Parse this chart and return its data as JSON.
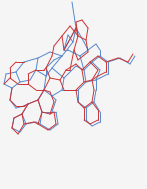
{
  "background": "#f5f5f5",
  "blue_color": "#5588cc",
  "red_color": "#cc3333",
  "linewidth": 0.7,
  "figsize": [
    1.47,
    1.89
  ],
  "dpi": 100,
  "xlim": [
    0,
    147
  ],
  "ylim": [
    189,
    0
  ],
  "blue_lines": [
    [
      [
        72,
        2
      ],
      [
        76,
        28
      ]
    ],
    [
      [
        76,
        28
      ],
      [
        73,
        42
      ]
    ],
    [
      [
        73,
        42
      ],
      [
        68,
        35
      ]
    ],
    [
      [
        68,
        35
      ],
      [
        64,
        50
      ]
    ],
    [
      [
        64,
        50
      ],
      [
        76,
        28
      ]
    ],
    [
      [
        73,
        42
      ],
      [
        62,
        56
      ]
    ],
    [
      [
        62,
        56
      ],
      [
        50,
        52
      ]
    ],
    [
      [
        50,
        52
      ],
      [
        38,
        58
      ]
    ],
    [
      [
        38,
        58
      ],
      [
        36,
        70
      ]
    ],
    [
      [
        36,
        70
      ],
      [
        46,
        76
      ]
    ],
    [
      [
        46,
        76
      ],
      [
        52,
        68
      ]
    ],
    [
      [
        52,
        68
      ],
      [
        62,
        56
      ]
    ],
    [
      [
        38,
        58
      ],
      [
        24,
        62
      ]
    ],
    [
      [
        24,
        62
      ],
      [
        16,
        72
      ]
    ],
    [
      [
        16,
        72
      ],
      [
        20,
        82
      ]
    ],
    [
      [
        20,
        82
      ],
      [
        30,
        80
      ]
    ],
    [
      [
        30,
        80
      ],
      [
        36,
        70
      ]
    ],
    [
      [
        16,
        72
      ],
      [
        6,
        74
      ]
    ],
    [
      [
        6,
        74
      ],
      [
        4,
        84
      ]
    ],
    [
      [
        4,
        84
      ],
      [
        12,
        88
      ]
    ],
    [
      [
        12,
        88
      ],
      [
        20,
        82
      ]
    ],
    [
      [
        46,
        76
      ],
      [
        44,
        90
      ]
    ],
    [
      [
        44,
        90
      ],
      [
        52,
        96
      ]
    ],
    [
      [
        52,
        96
      ],
      [
        62,
        90
      ]
    ],
    [
      [
        62,
        90
      ],
      [
        64,
        78
      ]
    ],
    [
      [
        64,
        78
      ],
      [
        52,
        68
      ]
    ],
    [
      [
        62,
        90
      ],
      [
        78,
        90
      ]
    ],
    [
      [
        78,
        90
      ],
      [
        86,
        82
      ]
    ],
    [
      [
        86,
        82
      ],
      [
        84,
        70
      ]
    ],
    [
      [
        84,
        70
      ],
      [
        76,
        66
      ]
    ],
    [
      [
        76,
        66
      ],
      [
        64,
        78
      ]
    ],
    [
      [
        86,
        82
      ],
      [
        96,
        80
      ]
    ],
    [
      [
        96,
        80
      ],
      [
        100,
        70
      ]
    ],
    [
      [
        100,
        70
      ],
      [
        92,
        62
      ]
    ],
    [
      [
        92,
        62
      ],
      [
        84,
        70
      ]
    ],
    [
      [
        92,
        62
      ],
      [
        100,
        56
      ]
    ],
    [
      [
        100,
        56
      ],
      [
        108,
        62
      ]
    ],
    [
      [
        108,
        62
      ],
      [
        108,
        74
      ]
    ],
    [
      [
        108,
        74
      ],
      [
        100,
        78
      ]
    ],
    [
      [
        100,
        78
      ],
      [
        96,
        80
      ]
    ],
    [
      [
        108,
        62
      ],
      [
        120,
        58
      ]
    ],
    [
      [
        120,
        58
      ],
      [
        130,
        64
      ]
    ],
    [
      [
        130,
        64
      ],
      [
        135,
        56
      ]
    ],
    [
      [
        84,
        70
      ],
      [
        80,
        56
      ]
    ],
    [
      [
        80,
        56
      ],
      [
        68,
        50
      ]
    ],
    [
      [
        68,
        50
      ],
      [
        64,
        50
      ]
    ],
    [
      [
        80,
        56
      ],
      [
        88,
        50
      ]
    ],
    [
      [
        88,
        50
      ],
      [
        84,
        42
      ]
    ],
    [
      [
        84,
        42
      ],
      [
        76,
        28
      ]
    ],
    [
      [
        88,
        50
      ],
      [
        96,
        44
      ]
    ],
    [
      [
        96,
        44
      ],
      [
        100,
        50
      ]
    ],
    [
      [
        100,
        50
      ],
      [
        100,
        56
      ]
    ],
    [
      [
        44,
        90
      ],
      [
        38,
        100
      ]
    ],
    [
      [
        38,
        100
      ],
      [
        42,
        112
      ]
    ],
    [
      [
        42,
        112
      ],
      [
        52,
        112
      ]
    ],
    [
      [
        52,
        112
      ],
      [
        56,
        100
      ]
    ],
    [
      [
        56,
        100
      ],
      [
        52,
        96
      ]
    ],
    [
      [
        42,
        112
      ],
      [
        40,
        124
      ]
    ],
    [
      [
        40,
        124
      ],
      [
        50,
        130
      ]
    ],
    [
      [
        50,
        130
      ],
      [
        58,
        124
      ]
    ],
    [
      [
        58,
        124
      ],
      [
        56,
        112
      ]
    ],
    [
      [
        56,
        112
      ],
      [
        52,
        112
      ]
    ],
    [
      [
        38,
        100
      ],
      [
        28,
        104
      ]
    ],
    [
      [
        28,
        104
      ],
      [
        22,
        114
      ]
    ],
    [
      [
        22,
        114
      ],
      [
        26,
        124
      ]
    ],
    [
      [
        26,
        124
      ],
      [
        36,
        122
      ]
    ],
    [
      [
        36,
        122
      ],
      [
        40,
        124
      ]
    ],
    [
      [
        22,
        114
      ],
      [
        14,
        118
      ]
    ],
    [
      [
        14,
        118
      ],
      [
        12,
        128
      ]
    ],
    [
      [
        12,
        128
      ],
      [
        20,
        132
      ]
    ],
    [
      [
        20,
        132
      ],
      [
        26,
        124
      ]
    ],
    [
      [
        12,
        88
      ],
      [
        10,
        100
      ]
    ],
    [
      [
        10,
        100
      ],
      [
        16,
        108
      ]
    ],
    [
      [
        16,
        108
      ],
      [
        24,
        106
      ]
    ],
    [
      [
        24,
        106
      ],
      [
        28,
        104
      ]
    ],
    [
      [
        78,
        90
      ],
      [
        78,
        102
      ]
    ],
    [
      [
        78,
        102
      ],
      [
        86,
        108
      ]
    ],
    [
      [
        86,
        108
      ],
      [
        94,
        102
      ]
    ],
    [
      [
        94,
        102
      ],
      [
        96,
        90
      ]
    ],
    [
      [
        96,
        90
      ],
      [
        96,
        80
      ]
    ],
    [
      [
        86,
        108
      ],
      [
        86,
        120
      ]
    ],
    [
      [
        86,
        120
      ],
      [
        92,
        126
      ]
    ],
    [
      [
        92,
        126
      ],
      [
        100,
        122
      ]
    ],
    [
      [
        100,
        122
      ],
      [
        100,
        112
      ]
    ],
    [
      [
        100,
        112
      ],
      [
        94,
        102
      ]
    ],
    [
      [
        62,
        56
      ],
      [
        54,
        60
      ]
    ],
    [
      [
        54,
        60
      ],
      [
        46,
        68
      ]
    ],
    [
      [
        46,
        68
      ],
      [
        46,
        76
      ]
    ]
  ],
  "red_lines": [
    [
      [
        70,
        70
      ],
      [
        74,
        50
      ]
    ],
    [
      [
        74,
        50
      ],
      [
        78,
        60
      ]
    ],
    [
      [
        78,
        60
      ],
      [
        88,
        52
      ]
    ],
    [
      [
        88,
        52
      ],
      [
        86,
        40
      ]
    ],
    [
      [
        86,
        40
      ],
      [
        78,
        36
      ]
    ],
    [
      [
        78,
        36
      ],
      [
        74,
        50
      ]
    ],
    [
      [
        78,
        36
      ],
      [
        70,
        26
      ]
    ],
    [
      [
        70,
        26
      ],
      [
        62,
        36
      ]
    ],
    [
      [
        62,
        36
      ],
      [
        64,
        50
      ]
    ],
    [
      [
        62,
        36
      ],
      [
        54,
        46
      ]
    ],
    [
      [
        54,
        46
      ],
      [
        52,
        56
      ]
    ],
    [
      [
        52,
        56
      ],
      [
        46,
        68
      ]
    ],
    [
      [
        46,
        68
      ],
      [
        50,
        78
      ]
    ],
    [
      [
        50,
        78
      ],
      [
        60,
        80
      ]
    ],
    [
      [
        60,
        80
      ],
      [
        66,
        70
      ]
    ],
    [
      [
        66,
        70
      ],
      [
        70,
        70
      ]
    ],
    [
      [
        50,
        78
      ],
      [
        44,
        90
      ]
    ],
    [
      [
        44,
        90
      ],
      [
        36,
        90
      ]
    ],
    [
      [
        36,
        90
      ],
      [
        28,
        84
      ]
    ],
    [
      [
        28,
        84
      ],
      [
        28,
        74
      ]
    ],
    [
      [
        28,
        74
      ],
      [
        36,
        70
      ]
    ],
    [
      [
        36,
        70
      ],
      [
        44,
        70
      ]
    ],
    [
      [
        44,
        70
      ],
      [
        46,
        68
      ]
    ],
    [
      [
        28,
        84
      ],
      [
        18,
        84
      ]
    ],
    [
      [
        18,
        84
      ],
      [
        10,
        78
      ]
    ],
    [
      [
        10,
        78
      ],
      [
        10,
        68
      ]
    ],
    [
      [
        10,
        68
      ],
      [
        16,
        62
      ]
    ],
    [
      [
        16,
        62
      ],
      [
        24,
        62
      ]
    ],
    [
      [
        10,
        78
      ],
      [
        4,
        84
      ]
    ],
    [
      [
        60,
        80
      ],
      [
        64,
        90
      ]
    ],
    [
      [
        64,
        90
      ],
      [
        76,
        90
      ]
    ],
    [
      [
        76,
        90
      ],
      [
        84,
        82
      ]
    ],
    [
      [
        84,
        82
      ],
      [
        82,
        70
      ]
    ],
    [
      [
        82,
        70
      ],
      [
        76,
        64
      ]
    ],
    [
      [
        76,
        64
      ],
      [
        66,
        70
      ]
    ],
    [
      [
        84,
        82
      ],
      [
        92,
        80
      ]
    ],
    [
      [
        92,
        80
      ],
      [
        98,
        70
      ]
    ],
    [
      [
        98,
        70
      ],
      [
        90,
        62
      ]
    ],
    [
      [
        90,
        62
      ],
      [
        82,
        70
      ]
    ],
    [
      [
        90,
        62
      ],
      [
        98,
        56
      ]
    ],
    [
      [
        98,
        56
      ],
      [
        106,
        62
      ]
    ],
    [
      [
        106,
        62
      ],
      [
        106,
        72
      ]
    ],
    [
      [
        106,
        72
      ],
      [
        98,
        76
      ]
    ],
    [
      [
        98,
        76
      ],
      [
        92,
        80
      ]
    ],
    [
      [
        106,
        62
      ],
      [
        118,
        58
      ]
    ],
    [
      [
        118,
        58
      ],
      [
        128,
        62
      ]
    ],
    [
      [
        128,
        62
      ],
      [
        133,
        54
      ]
    ],
    [
      [
        76,
        90
      ],
      [
        78,
        102
      ]
    ],
    [
      [
        78,
        102
      ],
      [
        84,
        108
      ]
    ],
    [
      [
        84,
        108
      ],
      [
        92,
        102
      ]
    ],
    [
      [
        92,
        102
      ],
      [
        94,
        90
      ]
    ],
    [
      [
        94,
        90
      ],
      [
        92,
        80
      ]
    ],
    [
      [
        84,
        108
      ],
      [
        84,
        120
      ]
    ],
    [
      [
        84,
        120
      ],
      [
        90,
        124
      ]
    ],
    [
      [
        90,
        124
      ],
      [
        98,
        120
      ]
    ],
    [
      [
        98,
        120
      ],
      [
        98,
        110
      ]
    ],
    [
      [
        98,
        110
      ],
      [
        92,
        102
      ]
    ],
    [
      [
        44,
        90
      ],
      [
        38,
        100
      ]
    ],
    [
      [
        38,
        100
      ],
      [
        42,
        112
      ]
    ],
    [
      [
        42,
        112
      ],
      [
        50,
        114
      ]
    ],
    [
      [
        50,
        114
      ],
      [
        54,
        102
      ]
    ],
    [
      [
        54,
        102
      ],
      [
        50,
        92
      ]
    ],
    [
      [
        50,
        92
      ],
      [
        44,
        90
      ]
    ],
    [
      [
        42,
        112
      ],
      [
        38,
        124
      ]
    ],
    [
      [
        38,
        124
      ],
      [
        48,
        130
      ]
    ],
    [
      [
        48,
        130
      ],
      [
        56,
        124
      ]
    ],
    [
      [
        56,
        124
      ],
      [
        54,
        112
      ]
    ],
    [
      [
        54,
        112
      ],
      [
        50,
        114
      ]
    ],
    [
      [
        38,
        100
      ],
      [
        28,
        104
      ]
    ],
    [
      [
        28,
        104
      ],
      [
        22,
        114
      ]
    ],
    [
      [
        22,
        114
      ],
      [
        24,
        124
      ]
    ],
    [
      [
        24,
        124
      ],
      [
        34,
        122
      ]
    ],
    [
      [
        34,
        122
      ],
      [
        38,
        124
      ]
    ],
    [
      [
        22,
        114
      ],
      [
        14,
        118
      ]
    ],
    [
      [
        14,
        118
      ],
      [
        12,
        128
      ]
    ],
    [
      [
        12,
        128
      ],
      [
        18,
        134
      ]
    ],
    [
      [
        18,
        134
      ],
      [
        24,
        124
      ]
    ],
    [
      [
        12,
        88
      ],
      [
        10,
        100
      ]
    ],
    [
      [
        10,
        100
      ],
      [
        16,
        106
      ]
    ],
    [
      [
        16,
        106
      ],
      [
        24,
        106
      ]
    ],
    [
      [
        24,
        106
      ],
      [
        28,
        104
      ]
    ],
    [
      [
        86,
        40
      ],
      [
        88,
        28
      ]
    ],
    [
      [
        88,
        28
      ],
      [
        82,
        20
      ]
    ],
    [
      [
        82,
        20
      ],
      [
        76,
        22
      ]
    ],
    [
      [
        76,
        22
      ],
      [
        78,
        36
      ]
    ],
    [
      [
        64,
        50
      ],
      [
        76,
        28
      ]
    ],
    [
      [
        76,
        28
      ],
      [
        78,
        36
      ]
    ]
  ]
}
